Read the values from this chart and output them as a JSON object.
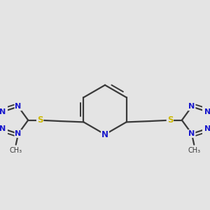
{
  "background_color": "#e4e4e4",
  "bond_color": "#3a3a3a",
  "N_color": "#1a1acc",
  "S_color": "#ccb800",
  "line_width": 1.6,
  "font_size_atom": 8.5
}
